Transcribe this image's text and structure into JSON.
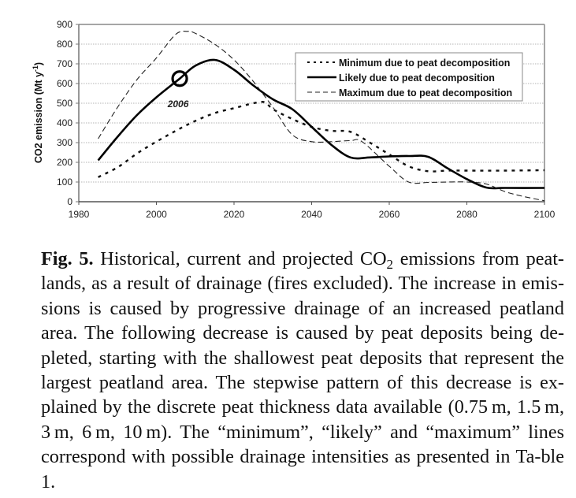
{
  "chart_data": {
    "type": "line",
    "title": "",
    "xlabel": "",
    "ylabel": "CO2 emission (Mt y",
    "ylabel_sup": "-1",
    "ylabel_close": ")",
    "xlim": [
      1980,
      2100
    ],
    "ylim": [
      0,
      900
    ],
    "x_ticks": [
      1980,
      2000,
      2020,
      2040,
      2060,
      2080,
      2100
    ],
    "y_ticks": [
      0,
      100,
      200,
      300,
      400,
      500,
      600,
      700,
      800,
      900
    ],
    "grid": "horizontal dotted",
    "legend_position": "top-right",
    "annotation": {
      "label": "2006",
      "x": 2006,
      "y": 625,
      "marker": "circle"
    },
    "series": [
      {
        "name": "Minimum due to peat decomposition",
        "style": "dotted",
        "x": [
          1985,
          1990,
          1995,
          2000,
          2005,
          2010,
          2015,
          2020,
          2025,
          2028,
          2030,
          2035,
          2040,
          2045,
          2050,
          2055,
          2060,
          2065,
          2070,
          2075,
          2080,
          2090,
          2100
        ],
        "values": [
          125,
          175,
          245,
          305,
          360,
          410,
          450,
          475,
          500,
          505,
          470,
          420,
          380,
          360,
          355,
          300,
          240,
          180,
          155,
          158,
          158,
          158,
          160
        ]
      },
      {
        "name": "Likely due to peat decomposition",
        "style": "solid",
        "x": [
          1985,
          1990,
          1995,
          2000,
          2006,
          2010,
          2015,
          2020,
          2025,
          2030,
          2035,
          2040,
          2045,
          2050,
          2055,
          2060,
          2065,
          2070,
          2075,
          2080,
          2085,
          2090,
          2100
        ],
        "values": [
          210,
          330,
          440,
          530,
          625,
          690,
          720,
          670,
          590,
          520,
          470,
          380,
          290,
          225,
          225,
          230,
          232,
          228,
          170,
          115,
          72,
          70,
          70
        ]
      },
      {
        "name": "Maximum due to peat decomposition",
        "style": "dashed",
        "x": [
          1985,
          1990,
          1995,
          2000,
          2005,
          2008,
          2010,
          2015,
          2020,
          2025,
          2030,
          2035,
          2040,
          2045,
          2050,
          2053,
          2060,
          2065,
          2070,
          2075,
          2080,
          2085,
          2090,
          2095,
          2100
        ],
        "values": [
          320,
          480,
          620,
          730,
          850,
          865,
          855,
          800,
          720,
          610,
          480,
          340,
          305,
          305,
          310,
          305,
          180,
          100,
          98,
          100,
          100,
          90,
          50,
          25,
          5
        ]
      }
    ]
  },
  "caption": {
    "fig_label": "Fig. 5.",
    "text_before_sub": " Historical, current and projected CO",
    "sub": "2",
    "text_after_sub": " emissions from peat-lands, as a result of drainage (fires excluded). The increase in emis-sions is caused by progressive drainage of an increased peatland area.  The following decrease is caused by peat deposits being de-pleted, starting with the shallowest peat deposits that represent the largest peatland area.  The stepwise pattern of this decrease is ex-plained by the discrete peat thickness data available (0.75 m, 1.5 m, 3 m, 6 m, 10 m).  The “minimum”, “likely” and “maximum” lines correspond with possible drainage intensities as presented in Ta-ble 1."
  }
}
